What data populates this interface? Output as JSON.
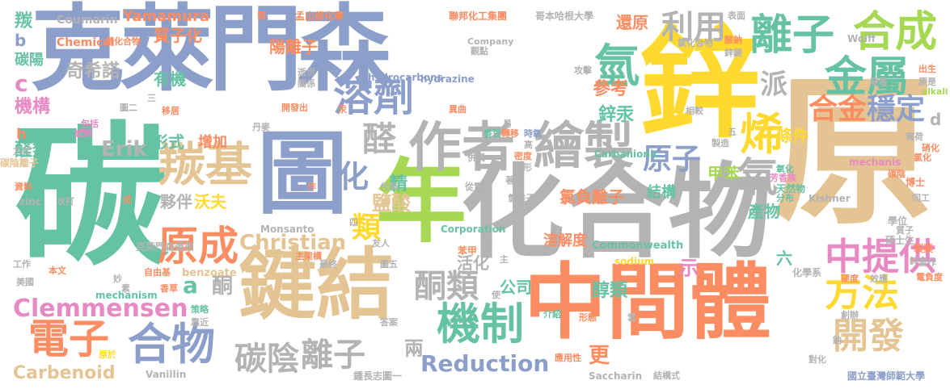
{
  "palette": {
    "blue": "#8c9fcb",
    "teal": "#66c2a5",
    "orange": "#fc8d62",
    "pink": "#e78ac3",
    "green": "#a6d854",
    "yellow": "#ffd92f",
    "tan": "#e5c494",
    "gray": "#b3b3b3"
  },
  "words": [
    {
      "text": "克萊門森",
      "color": "blue"
    },
    {
      "text": "碳",
      "color": "teal"
    },
    {
      "text": "鋅",
      "color": "yellow"
    },
    {
      "text": "原",
      "color": "tan"
    },
    {
      "text": "化合物",
      "color": "gray"
    },
    {
      "text": "年",
      "color": "green"
    },
    {
      "text": "中間體",
      "color": "orange"
    },
    {
      "text": "鍵結",
      "color": "tan"
    },
    {
      "text": "圖",
      "color": "blue"
    },
    {
      "text": "作者",
      "color": "gray"
    },
    {
      "text": "繪製",
      "color": "gray"
    },
    {
      "text": "羰基",
      "color": "tan"
    },
    {
      "text": "溶劑",
      "color": "blue"
    },
    {
      "text": "離子",
      "color": "teal"
    },
    {
      "text": "合成",
      "color": "green"
    },
    {
      "text": "金屬",
      "color": "teal"
    },
    {
      "text": "氫",
      "color": "teal"
    },
    {
      "text": "利用",
      "color": "gray"
    },
    {
      "text": "合金",
      "color": "orange"
    },
    {
      "text": "穩定",
      "color": "blue"
    },
    {
      "text": "烯",
      "color": "yellow"
    },
    {
      "text": "原成",
      "color": "orange"
    },
    {
      "text": "電子",
      "color": "orange"
    },
    {
      "text": "合物",
      "color": "blue"
    },
    {
      "text": "機制",
      "color": "teal"
    },
    {
      "text": "方法",
      "color": "yellow"
    },
    {
      "text": "開發",
      "color": "tan"
    },
    {
      "text": "中提供",
      "color": "pink"
    },
    {
      "text": "原子",
      "color": "blue"
    },
    {
      "text": "碳陰",
      "color": "gray"
    },
    {
      "text": "離子",
      "color": "gray"
    },
    {
      "text": "酮類",
      "color": "gray"
    },
    {
      "text": "醛",
      "color": "gray"
    },
    {
      "text": "化",
      "color": "blue"
    },
    {
      "text": "Clemmensen",
      "color": "pink"
    },
    {
      "text": "Christian",
      "color": "tan"
    },
    {
      "text": "Reduction",
      "color": "blue"
    },
    {
      "text": "Carbenoid",
      "color": "tan"
    },
    {
      "text": "Erik",
      "color": "gray"
    },
    {
      "text": "奇希諾",
      "color": "gray"
    },
    {
      "text": "機構",
      "color": "pink"
    },
    {
      "text": "醛類",
      "color": "teal"
    },
    {
      "text": "Yamamura",
      "color": "orange"
    },
    {
      "text": "質子化",
      "color": "orange"
    },
    {
      "text": "陽離子",
      "color": "orange"
    },
    {
      "text": "還原",
      "color": "orange"
    },
    {
      "text": "參考",
      "color": "orange"
    },
    {
      "text": "鋅汞",
      "color": "teal"
    },
    {
      "text": "派",
      "color": "gray"
    },
    {
      "text": "條件",
      "color": "yellow"
    },
    {
      "text": "甲苯",
      "color": "green"
    },
    {
      "text": "氧",
      "color": "gray"
    },
    {
      "text": "形式",
      "color": "teal"
    },
    {
      "text": "增加",
      "color": "orange"
    },
    {
      "text": "夥伴",
      "color": "gray"
    },
    {
      "text": "沃夫",
      "color": "yellow"
    },
    {
      "text": "類",
      "color": "yellow"
    },
    {
      "text": "鹽酸",
      "color": "tan"
    },
    {
      "text": "精",
      "color": "teal"
    },
    {
      "text": "a",
      "color": "teal"
    },
    {
      "text": "酮",
      "color": "gray"
    },
    {
      "text": "活化",
      "color": "gray"
    },
    {
      "text": "公司",
      "color": "teal"
    },
    {
      "text": "醇類",
      "color": "teal"
    },
    {
      "text": "更",
      "color": "orange"
    },
    {
      "text": "兩",
      "color": "gray"
    },
    {
      "text": "結構",
      "color": "teal"
    },
    {
      "text": "產物",
      "color": "teal"
    },
    {
      "text": "氯負離子",
      "color": "orange"
    },
    {
      "text": "溶解度",
      "color": "orange"
    },
    {
      "text": "示",
      "color": "pink"
    },
    {
      "text": "六",
      "color": "teal"
    },
    {
      "text": "羰",
      "color": "teal"
    },
    {
      "text": "Coumarin",
      "color": "gray"
    },
    {
      "text": "Chemical",
      "color": "orange"
    },
    {
      "text": "碳陽",
      "color": "teal"
    },
    {
      "text": "b",
      "color": "blue"
    },
    {
      "text": "c",
      "color": "pink"
    },
    {
      "text": "h",
      "color": "orange"
    },
    {
      "text": "d",
      "color": "gray"
    },
    {
      "text": "有機",
      "color": "teal"
    },
    {
      "text": "Monsanto",
      "color": "gray"
    },
    {
      "text": "Commonwealth",
      "color": "teal"
    },
    {
      "text": "Corporation",
      "color": "teal"
    },
    {
      "text": "hydrazine",
      "color": "blue"
    },
    {
      "text": "hydrocarbons",
      "color": "blue"
    },
    {
      "text": "Carbanionic",
      "color": "teal"
    },
    {
      "text": "benzoate",
      "color": "tan"
    },
    {
      "text": "mechanism",
      "color": "teal"
    },
    {
      "text": "Vanillin",
      "color": "gray"
    },
    {
      "text": "Saccharin",
      "color": "gray"
    },
    {
      "text": "sodium",
      "color": "yellow"
    },
    {
      "text": "Kishner",
      "color": "gray"
    },
    {
      "text": "mechanis",
      "color": "pink"
    },
    {
      "text": "Wolff",
      "color": "gray"
    },
    {
      "text": "Company",
      "color": "gray"
    },
    {
      "text": "alkali",
      "color": "green"
    },
    {
      "text": "zinc",
      "color": "gray"
    },
    {
      "text": "聯邦化工集團",
      "color": "orange"
    },
    {
      "text": "哥本哈根大學",
      "color": "gray"
    },
    {
      "text": "孟山都化學",
      "color": "orange"
    },
    {
      "text": "國立臺灣師範大學",
      "color": "blue"
    },
    {
      "text": "碳陰離子",
      "color": "tan"
    },
    {
      "text": "克萊門森還原",
      "color": "gray"
    },
    {
      "text": "鍾長志圖一",
      "color": "gray"
    },
    {
      "text": "基化合物",
      "color": "orange"
    },
    {
      "text": "自由基",
      "color": "orange"
    },
    {
      "text": "硝化",
      "color": "orange"
    },
    {
      "text": "硬度",
      "color": "orange"
    },
    {
      "text": "碳陰",
      "color": "orange"
    },
    {
      "text": "芳香族",
      "color": "pink"
    },
    {
      "text": "天然物",
      "color": "teal"
    },
    {
      "text": "碩士生",
      "color": "gray"
    },
    {
      "text": "製藥",
      "color": "orange"
    },
    {
      "text": "化學系",
      "color": "gray"
    },
    {
      "text": "學位",
      "color": "gray"
    },
    {
      "text": "博士",
      "color": "orange"
    },
    {
      "text": "創辦",
      "color": "gray"
    },
    {
      "text": "電負度",
      "color": "orange"
    },
    {
      "text": "苯甲",
      "color": "orange"
    },
    {
      "text": "氯化合物",
      "color": "gray"
    },
    {
      "text": "酸鈉",
      "color": "orange"
    },
    {
      "text": "攻擊",
      "color": "gray"
    },
    {
      "text": "觀點",
      "color": "gray"
    },
    {
      "text": "氧化",
      "color": "teal"
    },
    {
      "text": "應用性",
      "color": "orange"
    },
    {
      "text": "介紹",
      "color": "teal"
    },
    {
      "text": "形態",
      "color": "orange"
    },
    {
      "text": "答案",
      "color": "gray"
    },
    {
      "text": "香草",
      "color": "orange"
    },
    {
      "text": "策略",
      "color": "teal"
    },
    {
      "text": "靠近",
      "color": "gray"
    },
    {
      "text": "原於",
      "color": "yellow"
    },
    {
      "text": "本文",
      "color": "orange"
    },
    {
      "text": "美國",
      "color": "gray"
    },
    {
      "text": "工作",
      "color": "gray"
    },
    {
      "text": "資料",
      "color": "orange"
    },
    {
      "text": "攻打",
      "color": "gray"
    },
    {
      "text": "方式",
      "color": "gray"
    },
    {
      "text": "包括",
      "color": "pink"
    },
    {
      "text": "試劑",
      "color": "pink"
    },
    {
      "text": "圖二",
      "color": "gray"
    },
    {
      "text": "移居",
      "color": "orange"
    },
    {
      "text": "丹麥",
      "color": "gray"
    },
    {
      "text": "開發出",
      "color": "orange"
    },
    {
      "text": "關係",
      "color": "gray"
    },
    {
      "text": "逝世",
      "color": "gray"
    },
    {
      "text": "香豆",
      "color": "teal"
    },
    {
      "text": "轉移",
      "color": "orange"
    },
    {
      "text": "時氧",
      "color": "blue"
    },
    {
      "text": "併構",
      "color": "gray"
    },
    {
      "text": "密度",
      "color": "orange"
    },
    {
      "text": "碳形",
      "color": "gray"
    },
    {
      "text": "氫離子",
      "color": "gray"
    },
    {
      "text": "著名",
      "color": "gray"
    },
    {
      "text": "從電",
      "color": "gray"
    },
    {
      "text": "友人",
      "color": "gray"
    },
    {
      "text": "代表",
      "color": "gray"
    },
    {
      "text": "主架構",
      "color": "orange"
    },
    {
      "text": "最終",
      "color": "gray"
    },
    {
      "text": "圖五",
      "color": "gray"
    },
    {
      "text": "糖",
      "color": "gray"
    },
    {
      "text": "主",
      "color": "gray"
    },
    {
      "text": "結構式",
      "color": "gray"
    },
    {
      "text": "對化",
      "color": "gray"
    },
    {
      "text": "出生",
      "color": "orange"
    },
    {
      "text": "原是",
      "color": "gray"
    },
    {
      "text": "發表",
      "color": "gray"
    },
    {
      "text": "鋅金",
      "color": "gray"
    },
    {
      "text": "質子",
      "color": "gray"
    },
    {
      "text": "同工",
      "color": "gray"
    },
    {
      "text": "合作",
      "color": "gray"
    },
    {
      "text": "分布",
      "color": "teal"
    },
    {
      "text": "相較",
      "color": "gray"
    },
    {
      "text": "鋅鍵",
      "color": "gray"
    },
    {
      "text": "表面",
      "color": "gray"
    },
    {
      "text": "電荷",
      "color": "gray"
    },
    {
      "text": "氯化",
      "color": "orange"
    },
    {
      "text": "異曲",
      "color": "orange"
    },
    {
      "text": "製造",
      "color": "gray"
    },
    {
      "text": "效應",
      "color": "gray"
    },
    {
      "text": "素",
      "color": "gray"
    },
    {
      "text": "妙",
      "color": "gray"
    },
    {
      "text": "使",
      "color": "gray"
    },
    {
      "text": "雲",
      "color": "gray"
    },
    {
      "text": "弱",
      "color": "orange"
    },
    {
      "text": "汞",
      "color": "orange"
    },
    {
      "text": "成",
      "color": "orange"
    },
    {
      "text": "作",
      "color": "orange"
    },
    {
      "text": "四",
      "color": "gray"
    },
    {
      "text": "易",
      "color": "gray"
    },
    {
      "text": "五",
      "color": "gray"
    },
    {
      "text": "三",
      "color": "gray"
    },
    {
      "text": "高",
      "color": "gray"
    },
    {
      "text": "鈉",
      "color": "gray"
    }
  ]
}
